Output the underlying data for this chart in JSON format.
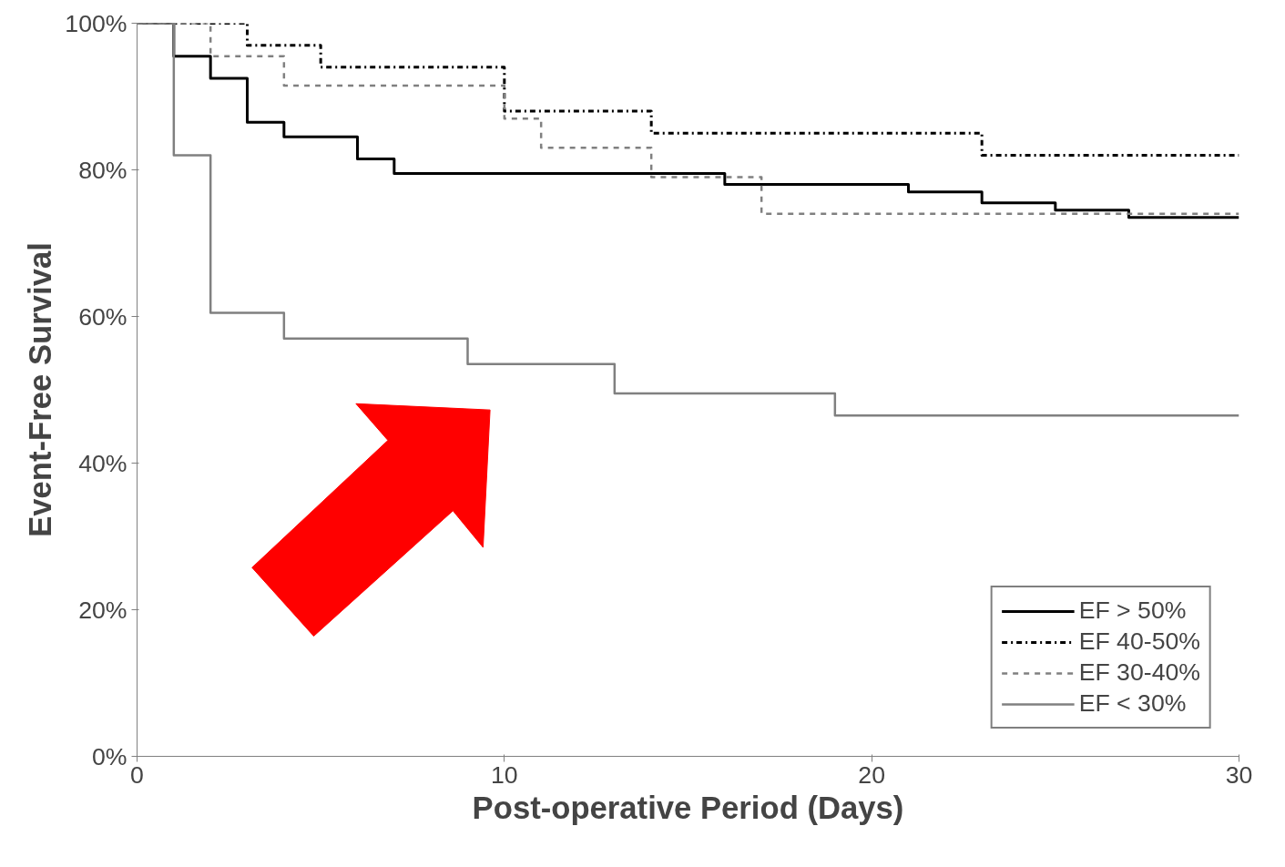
{
  "chart_data": {
    "type": "step",
    "xlabel": "Post-operative Period (Days)",
    "ylabel": "Event-Free Survival",
    "xlim": [
      0,
      30
    ],
    "ylim": [
      0,
      100
    ],
    "xticks": [
      0,
      10,
      20,
      30
    ],
    "yticks": [
      {
        "value": 0,
        "label": "0%"
      },
      {
        "value": 20,
        "label": "20%"
      },
      {
        "value": 40,
        "label": "40%"
      },
      {
        "value": 60,
        "label": "60%"
      },
      {
        "value": 80,
        "label": "80%"
      },
      {
        "value": 100,
        "label": "100%"
      }
    ],
    "grid": false,
    "legend": "bottom right",
    "series": [
      {
        "name": "EF > 50%",
        "color": "#000000",
        "line_style": "solid",
        "x": [
          0,
          1,
          2,
          3,
          4,
          6,
          7,
          16,
          21,
          23,
          25,
          27,
          30
        ],
        "values": [
          100,
          95.5,
          92.5,
          86.5,
          84.5,
          81.5,
          79.5,
          78,
          77,
          75.5,
          74.5,
          73.5,
          73.5
        ]
      },
      {
        "name": "EF 40-50%",
        "color": "#000000",
        "line_style": "dashdot",
        "x": [
          0,
          3,
          5,
          10,
          14,
          23,
          30
        ],
        "values": [
          100,
          97,
          94,
          88,
          85,
          82,
          82
        ]
      },
      {
        "name": "EF 30-40%",
        "color": "#808080",
        "line_style": "dashed",
        "x": [
          0,
          2,
          4,
          10,
          11,
          14,
          17,
          30
        ],
        "values": [
          100,
          95.5,
          91.5,
          87,
          83,
          79,
          74,
          74
        ]
      },
      {
        "name": "EF < 30%",
        "color": "#808080",
        "line_style": "solid",
        "x": [
          0,
          1,
          2,
          4,
          9,
          13,
          19,
          30
        ],
        "values": [
          100,
          82,
          60.5,
          57,
          53.5,
          49.5,
          46.5,
          46.5
        ]
      }
    ]
  }
}
